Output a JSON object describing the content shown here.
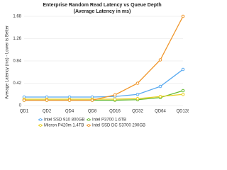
{
  "chart_data": {
    "type": "line",
    "title": "Enterprise Random Read Latency vs Queue Depth",
    "subtitle": "(Average Latency in ms)",
    "y_label": "Average Latency (ms) - Lower is Better",
    "categories": [
      "QD1",
      "QD2",
      "QD4",
      "QD8",
      "QD16",
      "QD32",
      "QD64",
      "QD128"
    ],
    "series": [
      {
        "name": "Intel SSD 910 800GB",
        "color": "#5aaaf0",
        "values": [
          0.16,
          0.16,
          0.16,
          0.16,
          0.17,
          0.21,
          0.36,
          0.68
        ]
      },
      {
        "name": "Intel P3700 1.6TB",
        "color": "#66bb33",
        "values": [
          0.1,
          0.1,
          0.1,
          0.1,
          0.1,
          0.11,
          0.15,
          0.28
        ]
      },
      {
        "name": "Micron P420m 1.4TB",
        "color": "#e8d020",
        "values": [
          0.12,
          0.12,
          0.12,
          0.12,
          0.12,
          0.13,
          0.17,
          0.21
        ]
      },
      {
        "name": "Intel SSD DC S3700 200GB",
        "color": "#f0962a",
        "values": [
          0.1,
          0.1,
          0.1,
          0.1,
          0.2,
          0.42,
          0.86,
          1.68
        ]
      }
    ],
    "ylim": [
      0,
      1.68
    ],
    "yticks": [
      0,
      0.42,
      0.84,
      1.26,
      1.68
    ],
    "grid": true
  }
}
